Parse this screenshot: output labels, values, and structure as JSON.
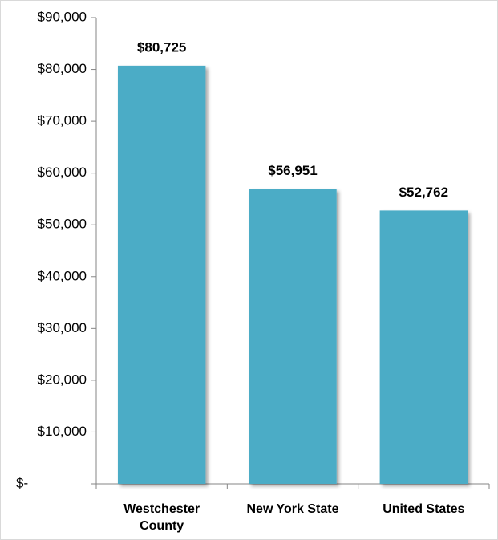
{
  "chart_data": {
    "type": "bar",
    "categories": [
      "Westchester County",
      "New York State",
      "United States"
    ],
    "values": [
      80725,
      56951,
      52762
    ],
    "value_labels": [
      "$80,725",
      "$56,951",
      "$52,762"
    ],
    "color": "#4bacc6",
    "ylim": [
      0,
      90000
    ],
    "yticks": [
      {
        "value": 0,
        "label": "$-"
      },
      {
        "value": 10000,
        "label": "$10,000"
      },
      {
        "value": 20000,
        "label": "$20,000"
      },
      {
        "value": 30000,
        "label": "$30,000"
      },
      {
        "value": 40000,
        "label": "$40,000"
      },
      {
        "value": 50000,
        "label": "$50,000"
      },
      {
        "value": 60000,
        "label": "$60,000"
      },
      {
        "value": 70000,
        "label": "$70,000"
      },
      {
        "value": 80000,
        "label": "$80,000"
      },
      {
        "value": 90000,
        "label": "$90,000"
      }
    ],
    "grid": false
  }
}
